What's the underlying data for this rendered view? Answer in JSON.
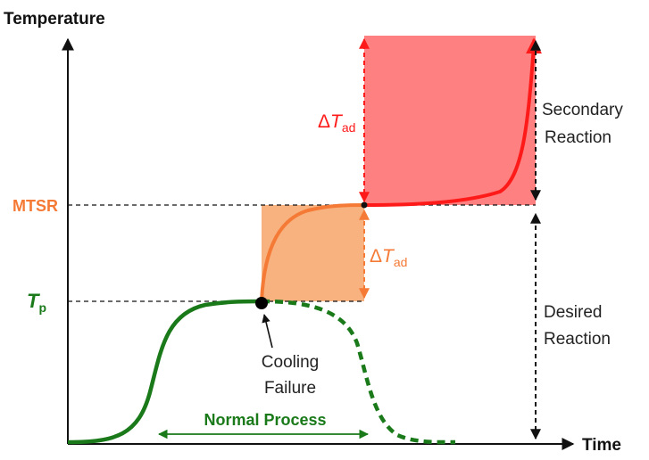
{
  "axes": {
    "y_title": "Temperature",
    "x_title": "Time"
  },
  "levels": {
    "mtsr": "MTSR",
    "tp_main": "T",
    "tp_sub": "p"
  },
  "annotations": {
    "delta_symbol": "Δ",
    "delta_T": "T",
    "delta_sub": "ad",
    "cooling_failure_line1": "Cooling",
    "cooling_failure_line2": "Failure",
    "normal_process": "Normal Process",
    "secondary_line1": "Secondary",
    "secondary_line2": "Reaction",
    "desired_line1": "Desired",
    "desired_line2": "Reaction"
  },
  "colors": {
    "green": "#1a7a1a",
    "orange": "#f47a35",
    "orange_fill": "#f8b27f",
    "red": "#ff1a1a",
    "red_fill": "#ff8080",
    "axis": "#111111"
  }
}
